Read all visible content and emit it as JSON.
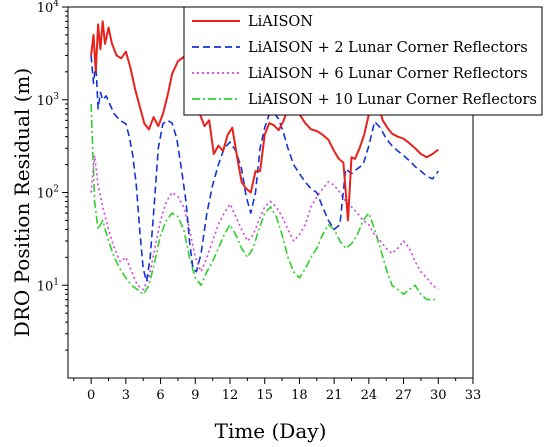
{
  "chart_data": {
    "type": "line",
    "title": "",
    "xlabel": "Time (Day)",
    "ylabel": "DRO Position Residual (m)",
    "xlim": [
      -2,
      33
    ],
    "ylim": [
      1,
      10000
    ],
    "y_scale": "log",
    "grid": false,
    "legend_placement": "top-right",
    "x_ticks": [
      0,
      3,
      6,
      9,
      12,
      15,
      18,
      21,
      24,
      27,
      30,
      33
    ],
    "x_tick_labels": [
      "0",
      "3",
      "6",
      "9",
      "12",
      "15",
      "18",
      "21",
      "24",
      "27",
      "30",
      "33"
    ],
    "y_ticks": [
      10,
      100,
      1000,
      10000
    ],
    "y_tick_labels": [
      {
        "base": "10",
        "exp": "1"
      },
      {
        "base": "10",
        "exp": "2"
      },
      {
        "base": "10",
        "exp": "3"
      },
      {
        "base": "10",
        "exp": "4"
      }
    ],
    "series": [
      {
        "name": "LiAISON",
        "color": "#e8211c",
        "style": "solid",
        "x": [
          0,
          0.2,
          0.4,
          0.6,
          0.8,
          1.0,
          1.2,
          1.5,
          1.8,
          2.2,
          2.6,
          3.0,
          3.4,
          3.8,
          4.2,
          4.6,
          5.0,
          5.4,
          5.8,
          6.2,
          6.6,
          7.0,
          7.5,
          8.0,
          8.5,
          9.0,
          9.4,
          9.8,
          10.2,
          10.6,
          11.0,
          11.4,
          11.8,
          12.2,
          12.6,
          13.0,
          13.4,
          13.8,
          14.2,
          14.6,
          15.0,
          15.4,
          15.8,
          16.2,
          16.6,
          17.0,
          17.5,
          18.0,
          18.5,
          19.0,
          19.5,
          20.0,
          20.5,
          21.0,
          21.4,
          21.8,
          22.2,
          22.5,
          22.8,
          23.2,
          23.6,
          24.0,
          24.4,
          24.8,
          25.2,
          25.6,
          26.0,
          26.5,
          27.0,
          27.5,
          28.0,
          28.5,
          29.0,
          29.5,
          30.0
        ],
        "y": [
          3000,
          5000,
          2000,
          6500,
          3500,
          7000,
          4000,
          6000,
          4000,
          3000,
          2800,
          3300,
          2200,
          1300,
          850,
          550,
          480,
          650,
          520,
          700,
          1100,
          1900,
          2600,
          2900,
          2400,
          1500,
          700,
          520,
          600,
          260,
          320,
          280,
          420,
          500,
          250,
          130,
          110,
          100,
          170,
          170,
          420,
          560,
          530,
          470,
          580,
          800,
          930,
          700,
          560,
          480,
          460,
          420,
          370,
          280,
          230,
          210,
          50,
          240,
          230,
          300,
          420,
          700,
          1050,
          900,
          600,
          500,
          430,
          400,
          380,
          340,
          300,
          260,
          240,
          260,
          290
        ]
      },
      {
        "name": "LiAISON + 2 Lunar Corner Reflectors",
        "color": "#1433d6",
        "style": "dashed",
        "x": [
          0,
          0.2,
          0.4,
          0.6,
          0.8,
          1.0,
          1.3,
          1.6,
          2.0,
          2.5,
          3.0,
          3.3,
          3.6,
          3.9,
          4.2,
          4.5,
          4.8,
          5.1,
          5.4,
          5.8,
          6.2,
          6.6,
          7.0,
          7.4,
          7.8,
          8.2,
          8.5,
          8.8,
          9.1,
          9.5,
          10.0,
          10.5,
          11.0,
          11.5,
          12.0,
          12.5,
          13.0,
          13.4,
          13.8,
          14.2,
          14.6,
          15.0,
          15.4,
          15.8,
          16.2,
          16.6,
          17.0,
          17.5,
          18.0,
          18.5,
          19.0,
          19.5,
          20.0,
          20.5,
          21.0,
          21.5,
          22.0,
          22.5,
          23.0,
          23.5,
          24.0,
          24.5,
          25.0,
          25.5,
          26.0,
          26.5,
          27.0,
          27.5,
          28.0,
          28.5,
          29.0,
          29.5,
          30.0
        ],
        "y": [
          3000,
          1500,
          2500,
          800,
          1200,
          1000,
          1100,
          900,
          700,
          600,
          550,
          400,
          250,
          120,
          40,
          15,
          11,
          20,
          60,
          300,
          550,
          600,
          560,
          380,
          180,
          80,
          30,
          15,
          14,
          22,
          60,
          120,
          200,
          300,
          350,
          280,
          180,
          90,
          60,
          100,
          300,
          500,
          700,
          720,
          620,
          450,
          300,
          200,
          160,
          130,
          110,
          100,
          70,
          50,
          40,
          45,
          180,
          160,
          180,
          200,
          320,
          580,
          500,
          380,
          320,
          280,
          250,
          220,
          190,
          170,
          150,
          140,
          170
        ]
      },
      {
        "name": "LiAISON + 6 Lunar Corner Reflectors",
        "color": "#d43ee3",
        "style": "dotted",
        "x": [
          0,
          0.3,
          0.6,
          1.0,
          1.5,
          2.0,
          2.5,
          3.0,
          3.5,
          4.0,
          4.5,
          5.0,
          5.5,
          6.0,
          6.5,
          7.0,
          7.5,
          8.0,
          8.5,
          9.0,
          9.5,
          10.0,
          10.5,
          11.0,
          11.5,
          12.0,
          12.5,
          13.0,
          13.5,
          14.0,
          14.5,
          15.0,
          15.5,
          16.0,
          16.5,
          17.0,
          17.5,
          18.0,
          18.5,
          19.0,
          19.5,
          20.0,
          20.5,
          21.0,
          21.5,
          22.0,
          22.5,
          23.0,
          23.5,
          24.0,
          24.5,
          25.0,
          25.5,
          26.0,
          26.5,
          27.0,
          27.5,
          28.0,
          28.5,
          29.0,
          29.5,
          30.0
        ],
        "y": [
          100,
          250,
          120,
          70,
          40,
          25,
          18,
          20,
          14,
          10,
          9,
          12,
          25,
          50,
          80,
          100,
          90,
          70,
          40,
          20,
          14,
          20,
          30,
          45,
          60,
          75,
          55,
          40,
          30,
          35,
          50,
          70,
          80,
          70,
          55,
          40,
          30,
          35,
          45,
          70,
          90,
          110,
          130,
          120,
          100,
          80,
          70,
          60,
          50,
          45,
          35,
          30,
          25,
          22,
          25,
          30,
          25,
          18,
          14,
          12,
          10,
          9
        ]
      },
      {
        "name": "LiAISON + 10 Lunar Corner Reflectors",
        "color": "#2fd02a",
        "style": "dashdot",
        "x": [
          0,
          0.3,
          0.6,
          1.0,
          1.5,
          2.0,
          2.5,
          3.0,
          3.5,
          4.0,
          4.5,
          5.0,
          5.5,
          6.0,
          6.5,
          7.0,
          7.5,
          8.0,
          8.5,
          9.0,
          9.5,
          10.0,
          10.5,
          11.0,
          11.5,
          12.0,
          12.5,
          13.0,
          13.5,
          14.0,
          14.5,
          15.0,
          15.5,
          16.0,
          16.5,
          17.0,
          17.5,
          18.0,
          18.5,
          19.0,
          19.5,
          20.0,
          20.5,
          21.0,
          21.5,
          22.0,
          22.5,
          23.0,
          23.5,
          24.0,
          24.5,
          25.0,
          25.5,
          26.0,
          26.5,
          27.0,
          27.5,
          28.0,
          28.5,
          29.0,
          29.5,
          30.0
        ],
        "y": [
          900,
          80,
          40,
          50,
          30,
          20,
          15,
          12,
          10,
          9,
          8,
          10,
          18,
          35,
          50,
          60,
          55,
          40,
          20,
          12,
          10,
          14,
          18,
          25,
          35,
          45,
          35,
          25,
          20,
          25,
          40,
          60,
          70,
          55,
          35,
          20,
          14,
          12,
          15,
          20,
          25,
          35,
          45,
          40,
          30,
          25,
          28,
          35,
          50,
          60,
          40,
          25,
          15,
          10,
          9,
          8,
          9,
          10,
          8,
          7,
          7,
          7
        ]
      }
    ]
  }
}
